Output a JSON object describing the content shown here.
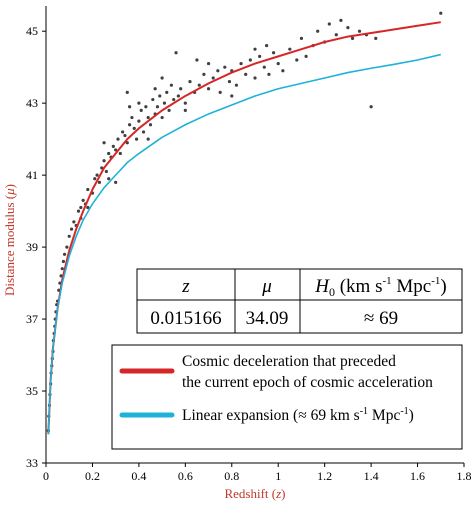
{
  "chart_data": {
    "type": "scatter",
    "xlabel_main": "Redshift (",
    "xlabel_var": "z",
    "xlabel_close": ")",
    "ylabel_main": "Distance modulus (",
    "ylabel_var": "μ",
    "ylabel_close": ")",
    "xlim": [
      0,
      1.8
    ],
    "ylim": [
      33,
      45.7
    ],
    "x_ticks": [
      "0",
      "0.2",
      "0.4",
      "0.6",
      "0.8",
      "1",
      "1.2",
      "1.4",
      "1.6",
      "1.8"
    ],
    "x_tick_values": [
      0,
      0.2,
      0.4,
      0.6,
      0.8,
      1.0,
      1.2,
      1.4,
      1.6,
      1.8
    ],
    "y_ticks": [
      "33",
      "35",
      "37",
      "39",
      "41",
      "43",
      "45"
    ],
    "y_tick_values": [
      33,
      35,
      37,
      39,
      41,
      43,
      45
    ],
    "grid": false,
    "colors": {
      "deceleration": "#d62728",
      "linear": "#1fb2d9",
      "points": "#404040",
      "axis_label": "#c0392b"
    },
    "series": [
      {
        "name": "Cosmic deceleration that preceded the current epoch of cosmic acceleration",
        "kind": "line",
        "x": [
          0.01,
          0.02,
          0.03,
          0.05,
          0.07,
          0.1,
          0.13,
          0.16,
          0.2,
          0.25,
          0.3,
          0.35,
          0.4,
          0.45,
          0.5,
          0.55,
          0.6,
          0.7,
          0.8,
          0.9,
          1.0,
          1.1,
          1.2,
          1.3,
          1.4,
          1.5,
          1.6,
          1.7
        ],
        "y": [
          33.8,
          35.3,
          36.2,
          37.3,
          38.1,
          38.9,
          39.5,
          40.0,
          40.6,
          41.2,
          41.6,
          42.0,
          42.3,
          42.55,
          42.8,
          43.0,
          43.2,
          43.55,
          43.85,
          44.1,
          44.3,
          44.5,
          44.7,
          44.85,
          44.95,
          45.05,
          45.15,
          45.25
        ]
      },
      {
        "name": "Linear expansion (≈ 69 km s-1 Mpc-1)",
        "kind": "line",
        "x": [
          0.01,
          0.02,
          0.03,
          0.05,
          0.07,
          0.1,
          0.13,
          0.16,
          0.2,
          0.25,
          0.3,
          0.35,
          0.4,
          0.5,
          0.6,
          0.7,
          0.8,
          0.9,
          1.0,
          1.1,
          1.2,
          1.3,
          1.4,
          1.5,
          1.6,
          1.7
        ],
        "y": [
          33.8,
          35.3,
          36.2,
          37.3,
          38.0,
          38.75,
          39.3,
          39.75,
          40.2,
          40.65,
          41.0,
          41.35,
          41.6,
          42.05,
          42.4,
          42.7,
          42.95,
          43.2,
          43.4,
          43.55,
          43.7,
          43.85,
          43.97,
          44.08,
          44.2,
          44.35
        ]
      }
    ],
    "scatter_points": [
      [
        0.01,
        33.9
      ],
      [
        0.012,
        34.3
      ],
      [
        0.015,
        34.6
      ],
      [
        0.017,
        34.9
      ],
      [
        0.02,
        35.2
      ],
      [
        0.022,
        35.5
      ],
      [
        0.025,
        35.7
      ],
      [
        0.027,
        35.9
      ],
      [
        0.03,
        36.1
      ],
      [
        0.032,
        36.4
      ],
      [
        0.035,
        36.6
      ],
      [
        0.038,
        36.8
      ],
      [
        0.04,
        37.0
      ],
      [
        0.043,
        37.2
      ],
      [
        0.046,
        37.4
      ],
      [
        0.05,
        37.5
      ],
      [
        0.055,
        37.8
      ],
      [
        0.06,
        38.0
      ],
      [
        0.065,
        38.2
      ],
      [
        0.07,
        38.4
      ],
      [
        0.075,
        38.6
      ],
      [
        0.08,
        38.8
      ],
      [
        0.09,
        39.0
      ],
      [
        0.1,
        39.3
      ],
      [
        0.11,
        39.5
      ],
      [
        0.12,
        39.7
      ],
      [
        0.13,
        39.6
      ],
      [
        0.14,
        40.0
      ],
      [
        0.15,
        40.1
      ],
      [
        0.16,
        40.3
      ],
      [
        0.17,
        40.2
      ],
      [
        0.18,
        40.6
      ],
      [
        0.2,
        40.5
      ],
      [
        0.21,
        40.9
      ],
      [
        0.22,
        41.0
      ],
      [
        0.23,
        40.8
      ],
      [
        0.24,
        41.2
      ],
      [
        0.25,
        41.4
      ],
      [
        0.26,
        41.1
      ],
      [
        0.27,
        41.6
      ],
      [
        0.28,
        41.5
      ],
      [
        0.29,
        41.8
      ],
      [
        0.3,
        41.7
      ],
      [
        0.31,
        42.0
      ],
      [
        0.32,
        41.6
      ],
      [
        0.33,
        42.2
      ],
      [
        0.34,
        42.1
      ],
      [
        0.35,
        41.9
      ],
      [
        0.36,
        42.4
      ],
      [
        0.37,
        42.6
      ],
      [
        0.38,
        42.3
      ],
      [
        0.39,
        42.0
      ],
      [
        0.4,
        42.5
      ],
      [
        0.41,
        42.8
      ],
      [
        0.42,
        42.2
      ],
      [
        0.43,
        42.9
      ],
      [
        0.44,
        42.6
      ],
      [
        0.45,
        42.4
      ],
      [
        0.46,
        43.1
      ],
      [
        0.47,
        42.7
      ],
      [
        0.48,
        42.9
      ],
      [
        0.49,
        43.2
      ],
      [
        0.5,
        42.6
      ],
      [
        0.51,
        43.0
      ],
      [
        0.52,
        43.3
      ],
      [
        0.53,
        42.8
      ],
      [
        0.54,
        43.5
      ],
      [
        0.55,
        43.1
      ],
      [
        0.56,
        44.4
      ],
      [
        0.57,
        43.2
      ],
      [
        0.58,
        43.4
      ],
      [
        0.6,
        43.0
      ],
      [
        0.62,
        43.6
      ],
      [
        0.64,
        43.3
      ],
      [
        0.65,
        44.2
      ],
      [
        0.66,
        43.5
      ],
      [
        0.68,
        43.8
      ],
      [
        0.7,
        43.4
      ],
      [
        0.72,
        43.7
      ],
      [
        0.74,
        43.9
      ],
      [
        0.75,
        43.3
      ],
      [
        0.77,
        44.0
      ],
      [
        0.79,
        43.6
      ],
      [
        0.8,
        43.9
      ],
      [
        0.82,
        43.5
      ],
      [
        0.84,
        44.1
      ],
      [
        0.86,
        43.8
      ],
      [
        0.88,
        44.2
      ],
      [
        0.9,
        43.7
      ],
      [
        0.92,
        44.3
      ],
      [
        0.94,
        44.0
      ],
      [
        0.96,
        43.8
      ],
      [
        0.98,
        44.4
      ],
      [
        1.0,
        44.1
      ],
      [
        1.02,
        43.9
      ],
      [
        1.05,
        44.5
      ],
      [
        1.08,
        44.2
      ],
      [
        1.1,
        44.8
      ],
      [
        1.12,
        44.3
      ],
      [
        1.15,
        44.6
      ],
      [
        1.17,
        45.0
      ],
      [
        1.2,
        44.7
      ],
      [
        1.22,
        45.2
      ],
      [
        1.25,
        44.9
      ],
      [
        1.27,
        45.3
      ],
      [
        1.3,
        45.1
      ],
      [
        1.32,
        44.8
      ],
      [
        1.35,
        45.0
      ],
      [
        1.38,
        44.9
      ],
      [
        1.4,
        42.9
      ],
      [
        1.42,
        44.8
      ],
      [
        1.7,
        45.5
      ],
      [
        0.35,
        43.3
      ],
      [
        0.36,
        42.9
      ],
      [
        0.25,
        41.9
      ],
      [
        0.27,
        40.9
      ],
      [
        0.3,
        40.8
      ],
      [
        0.44,
        42.0
      ],
      [
        0.5,
        43.7
      ],
      [
        0.6,
        42.8
      ],
      [
        0.7,
        44.1
      ],
      [
        0.8,
        43.2
      ],
      [
        0.9,
        44.5
      ],
      [
        0.95,
        44.6
      ],
      [
        0.15,
        39.8
      ],
      [
        0.18,
        40.1
      ],
      [
        0.4,
        43.0
      ],
      [
        0.47,
        43.4
      ]
    ]
  },
  "table": {
    "headers": [
      "z",
      "μ",
      "H",
      "0",
      " (km s",
      "-1",
      " Mpc",
      "-1",
      ")"
    ],
    "z_value": "0.015166",
    "mu_value": "34.09",
    "h0_value": "≈ 69"
  },
  "legend": {
    "deceleration_line1": "Cosmic deceleration that preceded",
    "deceleration_line2": "the current epoch of cosmic acceleration",
    "linear_main": "Linear expansion (≈ 69 km s",
    "linear_sup1": "-1",
    "linear_mid": " Mpc",
    "linear_sup2": "-1",
    "linear_close": ")"
  }
}
